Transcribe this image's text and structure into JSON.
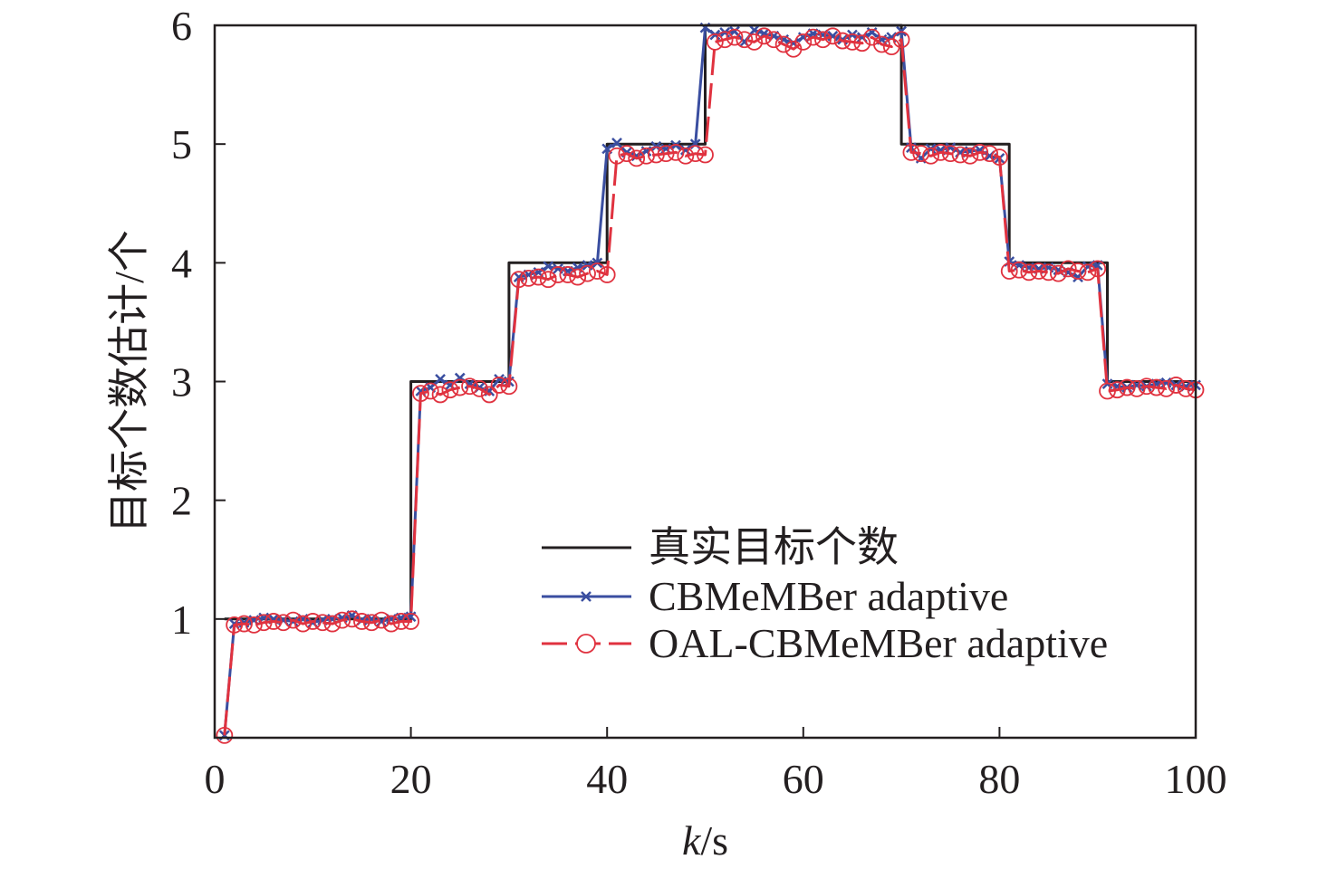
{
  "chart_data": {
    "type": "line",
    "xlabel_italic": "k",
    "xlabel_rest": "/s",
    "ylabel": "目标个数估计/个",
    "xlim": [
      0,
      100
    ],
    "ylim": [
      0,
      6
    ],
    "x_ticks": [
      0,
      20,
      40,
      60,
      80,
      100
    ],
    "x_tick_labels": [
      "0",
      "20",
      "40",
      "60",
      "80",
      "100"
    ],
    "y_ticks": [
      1,
      2,
      3,
      4,
      5,
      6
    ],
    "y_tick_labels": [
      "1",
      "2",
      "3",
      "4",
      "5",
      "6"
    ],
    "grid": false,
    "legend_position": "lower-right",
    "series": [
      {
        "name": "真实目标个数",
        "color": "#231f20",
        "style": "solid-step",
        "marker": "none",
        "x": [
          1,
          20,
          20,
          30,
          30,
          40,
          40,
          50,
          50,
          70,
          70,
          81,
          81,
          91,
          91,
          100
        ],
        "y": [
          1,
          1,
          3,
          3,
          4,
          4,
          5,
          5,
          6,
          6,
          5,
          5,
          4,
          4,
          3,
          3
        ]
      },
      {
        "name": "CBMeMBer adaptive",
        "color": "#3a4ea0",
        "style": "solid",
        "marker": "x",
        "x": [
          1,
          2,
          3,
          4,
          5,
          6,
          7,
          8,
          9,
          10,
          11,
          12,
          13,
          14,
          15,
          16,
          17,
          18,
          19,
          20,
          21,
          22,
          23,
          24,
          25,
          26,
          27,
          28,
          29,
          30,
          31,
          32,
          33,
          34,
          35,
          36,
          37,
          38,
          39,
          40,
          41,
          42,
          43,
          44,
          45,
          46,
          47,
          48,
          49,
          50,
          51,
          52,
          53,
          54,
          55,
          56,
          57,
          58,
          59,
          60,
          61,
          62,
          63,
          64,
          65,
          66,
          67,
          68,
          69,
          70,
          71,
          72,
          73,
          74,
          75,
          76,
          77,
          78,
          79,
          80,
          81,
          82,
          83,
          84,
          85,
          86,
          87,
          88,
          89,
          90,
          91,
          92,
          93,
          94,
          95,
          96,
          97,
          98,
          99,
          100
        ],
        "y": [
          0.02,
          0.96,
          0.97,
          0.99,
          1.01,
          1.0,
          0.99,
          0.98,
          1.0,
          0.97,
          0.99,
          1.0,
          1.01,
          1.03,
          0.99,
          1.0,
          0.98,
          1.0,
          1.01,
          1.02,
          2.92,
          2.95,
          3.02,
          2.97,
          3.03,
          2.98,
          2.95,
          2.92,
          3.02,
          3.0,
          3.88,
          3.9,
          3.92,
          3.97,
          3.95,
          3.93,
          3.96,
          3.98,
          4.0,
          4.96,
          5.01,
          4.93,
          4.9,
          4.94,
          4.98,
          4.96,
          4.99,
          4.95,
          5.0,
          5.98,
          5.92,
          5.94,
          5.95,
          5.86,
          5.96,
          5.93,
          5.91,
          5.88,
          5.85,
          5.9,
          5.93,
          5.92,
          5.91,
          5.88,
          5.92,
          5.9,
          5.94,
          5.88,
          5.9,
          5.95,
          4.97,
          4.88,
          4.96,
          4.95,
          4.97,
          4.93,
          4.94,
          4.95,
          4.9,
          4.88,
          4.01,
          3.98,
          3.96,
          3.95,
          3.96,
          3.94,
          3.92,
          3.88,
          3.97,
          3.98,
          2.98,
          2.96,
          2.95,
          2.97,
          2.96,
          2.98,
          2.99,
          2.97,
          2.96,
          2.97
        ]
      },
      {
        "name": "OAL-CBMeMBer adaptive",
        "color": "#e0323f",
        "style": "dashed",
        "marker": "o",
        "x": [
          1,
          2,
          3,
          4,
          5,
          6,
          7,
          8,
          9,
          10,
          11,
          12,
          13,
          14,
          15,
          16,
          17,
          18,
          19,
          20,
          21,
          22,
          23,
          24,
          25,
          26,
          27,
          28,
          29,
          30,
          31,
          32,
          33,
          34,
          35,
          36,
          37,
          38,
          39,
          40,
          41,
          42,
          43,
          44,
          45,
          46,
          47,
          48,
          49,
          50,
          51,
          52,
          53,
          54,
          55,
          56,
          57,
          58,
          59,
          60,
          61,
          62,
          63,
          64,
          65,
          66,
          67,
          68,
          69,
          70,
          71,
          72,
          73,
          74,
          75,
          76,
          77,
          78,
          79,
          80,
          81,
          82,
          83,
          84,
          85,
          86,
          87,
          88,
          89,
          90,
          91,
          92,
          93,
          94,
          95,
          96,
          97,
          98,
          99,
          100
        ],
        "y": [
          0.02,
          0.95,
          0.96,
          0.95,
          0.97,
          0.98,
          0.97,
          0.99,
          0.96,
          0.98,
          0.97,
          0.96,
          0.99,
          1.0,
          0.98,
          0.97,
          0.99,
          0.96,
          0.98,
          0.98,
          2.9,
          2.92,
          2.89,
          2.93,
          2.95,
          2.96,
          2.94,
          2.89,
          2.97,
          2.96,
          3.86,
          3.87,
          3.88,
          3.86,
          3.9,
          3.9,
          3.88,
          3.91,
          3.93,
          3.9,
          4.9,
          4.92,
          4.88,
          4.9,
          4.91,
          4.92,
          4.93,
          4.9,
          4.92,
          4.91,
          5.86,
          5.88,
          5.9,
          5.88,
          5.86,
          5.91,
          5.88,
          5.84,
          5.8,
          5.86,
          5.9,
          5.88,
          5.91,
          5.87,
          5.86,
          5.85,
          5.9,
          5.84,
          5.82,
          5.88,
          4.93,
          4.92,
          4.9,
          4.93,
          4.92,
          4.91,
          4.9,
          4.93,
          4.92,
          4.89,
          3.93,
          3.94,
          3.92,
          3.93,
          3.92,
          3.91,
          3.95,
          3.93,
          3.92,
          3.95,
          2.92,
          2.93,
          2.95,
          2.94,
          2.96,
          2.95,
          2.94,
          2.97,
          2.94,
          2.93
        ]
      }
    ]
  }
}
